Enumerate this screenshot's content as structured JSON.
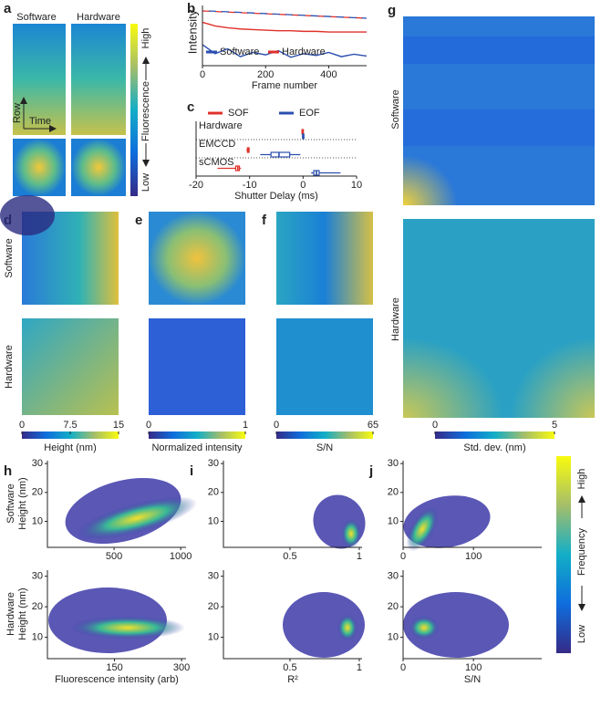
{
  "panel_labels": [
    "a",
    "b",
    "c",
    "d",
    "e",
    "f",
    "g",
    "h",
    "i",
    "j"
  ],
  "a": {
    "columns": [
      "Software",
      "Hardware"
    ],
    "row_axis": "Row",
    "time_axis": "Time",
    "colorbar": {
      "high": "High",
      "label": "Fluorescence",
      "low": "Low"
    }
  },
  "chart_data": [
    {
      "type": "line",
      "ylabel": "Intensity",
      "xlabel": "Frame number",
      "x": [
        0,
        40,
        80,
        120,
        160,
        200,
        240,
        280,
        320,
        360,
        400,
        440,
        480,
        520
      ],
      "xlim": [
        0,
        520
      ],
      "xticks": [
        0,
        200,
        400
      ],
      "ylim": [
        0,
        1
      ],
      "series": [
        {
          "name": "Software",
          "color": "#2b4fb0",
          "values": [
            0.35,
            0.2,
            0.28,
            0.15,
            0.22,
            0.18,
            0.25,
            0.14,
            0.2,
            0.17,
            0.22,
            0.15,
            0.19,
            0.16
          ]
        },
        {
          "name": "Hardware",
          "color": "#e0312b",
          "values": [
            0.72,
            0.66,
            0.63,
            0.61,
            0.6,
            0.59,
            0.58,
            0.58,
            0.57,
            0.57,
            0.56,
            0.56,
            0.56,
            0.56
          ]
        }
      ]
    },
    {
      "type": "box",
      "xlabel": "Shutter Delay (ms)",
      "categories": [
        "Hardware",
        "EMCCD",
        "sCMOS"
      ],
      "xlim": [
        -20,
        10
      ],
      "xticks": [
        -20,
        -10,
        0,
        10
      ],
      "series": [
        {
          "name": "SOF",
          "color": "#e0312b",
          "low": [
            -0.3,
            -10.6,
            -16
          ],
          "q1": [
            -0.2,
            -10.4,
            -12.6
          ],
          "median": [
            -0.1,
            -10.3,
            -12.2
          ],
          "q3": [
            0,
            -10.1,
            -11.9
          ],
          "high": [
            0.1,
            -10,
            -11.6
          ]
        },
        {
          "name": "EOF",
          "color": "#2b4fb0",
          "low": [
            -0.2,
            -8,
            1.5
          ],
          "q1": [
            -0.1,
            -6,
            2
          ],
          "median": [
            0,
            -4.5,
            2.5
          ],
          "q3": [
            0.1,
            -2.5,
            3
          ],
          "high": [
            0.2,
            -0.5,
            7
          ]
        }
      ]
    }
  ],
  "maps": {
    "row_labels": [
      "Software",
      "Hardware"
    ],
    "colorbars": [
      {
        "ticks": [
          0,
          7.5,
          15
        ],
        "lim": [
          0,
          15
        ],
        "label": "Height (nm)"
      },
      {
        "ticks": [
          0,
          1
        ],
        "lim": [
          0,
          1
        ],
        "label": "Normalized intensity"
      },
      {
        "ticks": [
          0,
          65
        ],
        "lim": [
          0,
          65
        ],
        "label": "S/N"
      }
    ]
  },
  "g": {
    "row_labels": [
      "Software",
      "Hardware"
    ],
    "colorbar": {
      "ticks": [
        0,
        5
      ],
      "lim": [
        0,
        5
      ],
      "label": "Std. dev. (nm)"
    }
  },
  "density": {
    "row_labels": [
      "Software",
      "Hardware"
    ],
    "ylabel": "Height (nm)",
    "colorbar": {
      "high": "High",
      "label": "Frequency",
      "low": "Low"
    },
    "panels": [
      {
        "xlabel": "Fluorescence intensity (arb)",
        "plots": [
          {
            "xlim": [
              0,
              1040
            ],
            "xticks": [
              500,
              1000
            ],
            "ylim": [
              1,
              31
            ],
            "yticks": [
              10,
              20,
              30
            ]
          },
          {
            "xlim": [
              0,
              310
            ],
            "xticks": [
              150,
              300
            ],
            "ylim": [
              3,
              32
            ],
            "yticks": [
              10,
              20,
              30
            ]
          }
        ]
      },
      {
        "xlabel": "R²",
        "plots": [
          {
            "xlim": [
              0.02,
              1.02
            ],
            "xticks": [
              0.5,
              1.0
            ],
            "ylim": [
              1,
              31
            ],
            "yticks": [
              10,
              20,
              30
            ]
          },
          {
            "xlim": [
              0.02,
              1.02
            ],
            "xticks": [
              0.5,
              1.0
            ],
            "ylim": [
              3,
              32
            ],
            "yticks": [
              10,
              20,
              30
            ]
          }
        ]
      },
      {
        "xlabel": "S/N",
        "plots": [
          {
            "xlim": [
              0,
              197
            ],
            "xticks": [
              0,
              100
            ],
            "ylim": [
              1,
              31
            ],
            "yticks": [
              10,
              20,
              30
            ]
          },
          {
            "xlim": [
              0,
              197
            ],
            "xticks": [
              0,
              100
            ],
            "ylim": [
              3,
              32
            ],
            "yticks": [
              10,
              20,
              30
            ]
          }
        ]
      }
    ]
  }
}
